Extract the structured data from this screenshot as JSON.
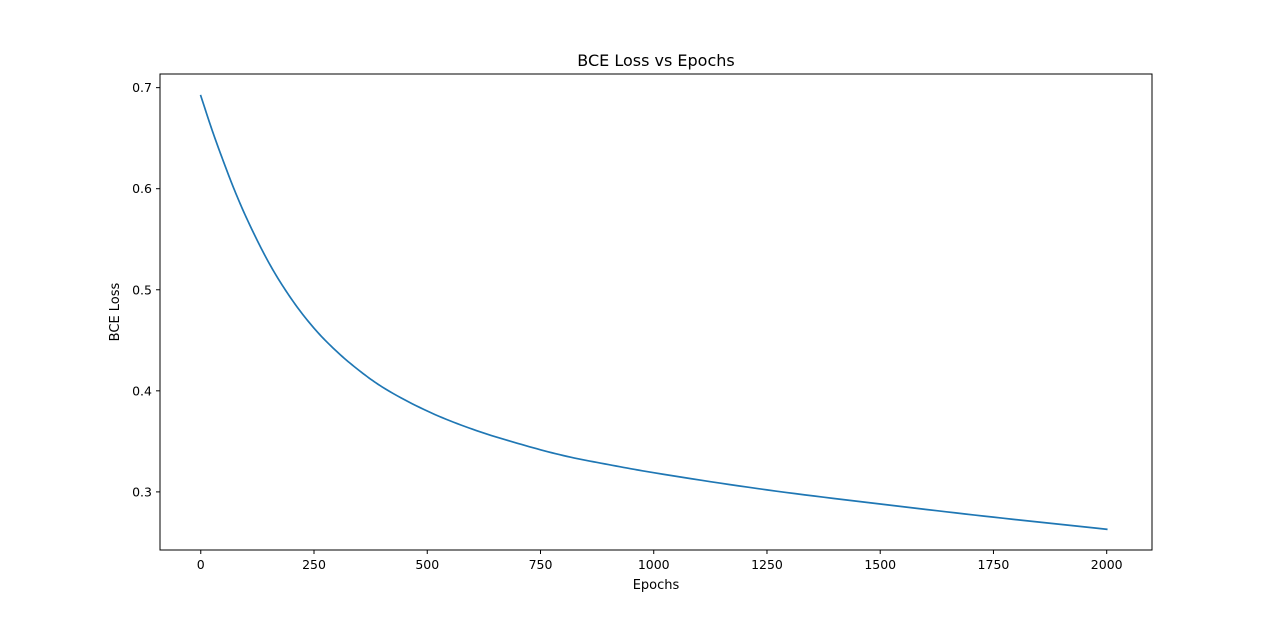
{
  "chart_data": {
    "type": "line",
    "title": "BCE Loss vs Epochs",
    "xlabel": "Epochs",
    "ylabel": "BCE Loss",
    "xlim": [
      -90,
      2100
    ],
    "ylim": [
      0.2425,
      0.7135
    ],
    "xticks": [
      0,
      250,
      500,
      750,
      1000,
      1250,
      1500,
      1750,
      2000
    ],
    "xtick_labels": [
      "0",
      "250",
      "500",
      "750",
      "1000",
      "1250",
      "1500",
      "1750",
      "2000"
    ],
    "yticks": [
      0.3,
      0.4,
      0.5,
      0.6,
      0.7
    ],
    "ytick_labels": [
      "0.3",
      "0.4",
      "0.5",
      "0.6",
      "0.7"
    ],
    "grid": false,
    "series": [
      {
        "color": "#1f77b4",
        "x": [
          0,
          25,
          50,
          75,
          100,
          150,
          200,
          250,
          300,
          350,
          400,
          500,
          600,
          700,
          800,
          900,
          1000,
          1250,
          1500,
          1750,
          2000
        ],
        "y": [
          0.692,
          0.658,
          0.627,
          0.598,
          0.572,
          0.527,
          0.491,
          0.462,
          0.439,
          0.42,
          0.404,
          0.38,
          0.362,
          0.348,
          0.336,
          0.327,
          0.319,
          0.302,
          0.288,
          0.275,
          0.263
        ]
      }
    ]
  }
}
